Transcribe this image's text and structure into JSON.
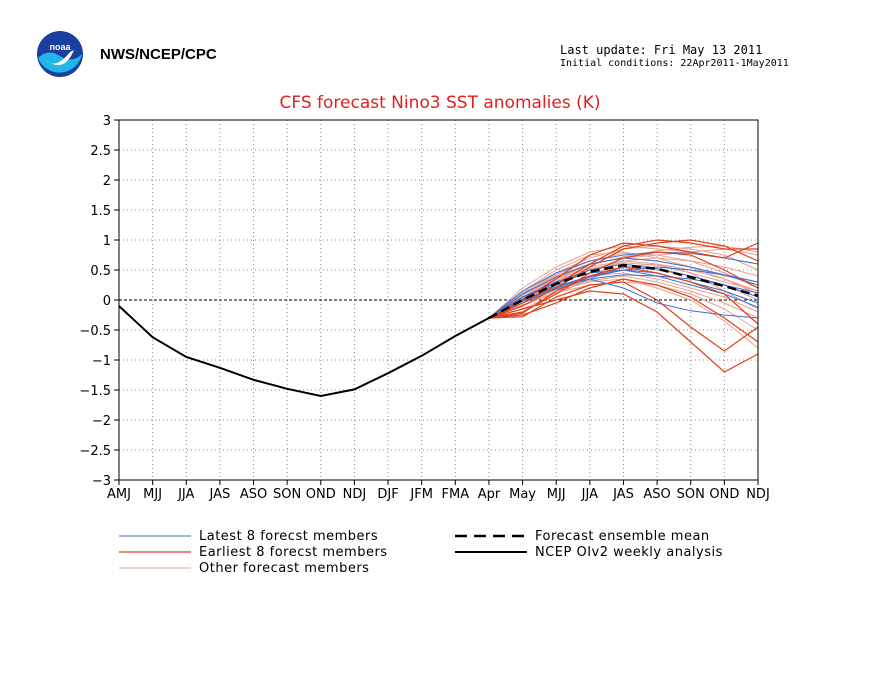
{
  "header": {
    "org": "NWS/NCEP/CPC",
    "last_update": "Last update: Fri May 13 2011",
    "initial_conditions": "Initial conditions: 22Apr2011-1May2011"
  },
  "colors": {
    "latest": "#3a6fd0",
    "earliest": "#e0401a",
    "other": "#e8a090",
    "mean": "#000000",
    "analysis": "#000000",
    "title": "#e02020"
  },
  "chart_data": {
    "type": "line",
    "title": "CFS forecast Nino3 SST anomalies (K)",
    "categories": [
      "AMJ",
      "MJJ",
      "JJA",
      "JAS",
      "ASO",
      "SON",
      "OND",
      "NDJ",
      "DJF",
      "JFM",
      "FMA",
      "Apr",
      "May",
      "MJJ",
      "JJA",
      "JAS",
      "ASO",
      "SON",
      "OND",
      "NDJ"
    ],
    "ylim": [
      -3,
      3
    ],
    "yticks": [
      -3,
      -2.5,
      -2,
      -1.5,
      -1,
      -0.5,
      0,
      0.5,
      1,
      1.5,
      2,
      2.5,
      3
    ],
    "grid": true,
    "legend": [
      {
        "label": "Latest 8 forecst members",
        "key": "latest"
      },
      {
        "label": "Earliest 8 forecst members",
        "key": "earliest"
      },
      {
        "label": "Other forecast members",
        "key": "other"
      },
      {
        "label": "Forecast ensemble mean",
        "key": "mean"
      },
      {
        "label": "NCEP OIv2 weekly analysis",
        "key": "analysis"
      }
    ],
    "analysis": {
      "x": [
        0,
        1,
        2,
        3,
        4,
        5,
        6,
        7,
        8,
        9,
        10,
        11
      ],
      "values": [
        -0.1,
        -0.62,
        -0.95,
        -1.13,
        -1.33,
        -1.48,
        -1.6,
        -1.49,
        -1.22,
        -0.93,
        -0.6,
        -0.3
      ]
    },
    "ensemble_mean": {
      "x": [
        11,
        12,
        13,
        14,
        15,
        16,
        17,
        18,
        19
      ],
      "values": [
        -0.3,
        0.0,
        0.27,
        0.47,
        0.58,
        0.52,
        0.38,
        0.23,
        0.07
      ]
    },
    "members": {
      "x": [
        11,
        12,
        13,
        14,
        15,
        16,
        17,
        18,
        19
      ],
      "latest": [
        [
          -0.3,
          0.05,
          0.3,
          0.5,
          0.6,
          0.52,
          0.4,
          0.25,
          0.05
        ],
        [
          -0.3,
          0.0,
          0.22,
          0.4,
          0.5,
          0.45,
          0.3,
          0.15,
          -0.05
        ],
        [
          -0.3,
          0.1,
          0.38,
          0.6,
          0.7,
          0.65,
          0.55,
          0.42,
          0.25
        ],
        [
          -0.3,
          -0.05,
          0.18,
          0.35,
          0.42,
          0.4,
          0.35,
          0.25,
          0.12
        ],
        [
          -0.3,
          0.05,
          0.25,
          0.35,
          0.2,
          -0.05,
          -0.18,
          -0.25,
          -0.3
        ],
        [
          -0.3,
          0.15,
          0.45,
          0.65,
          0.75,
          0.8,
          0.78,
          0.7,
          0.6
        ],
        [
          -0.3,
          0.02,
          0.3,
          0.45,
          0.5,
          0.4,
          0.25,
          0.1,
          -0.12
        ],
        [
          -0.3,
          -0.02,
          0.2,
          0.38,
          0.5,
          0.55,
          0.5,
          0.42,
          0.3
        ]
      ],
      "earliest": [
        [
          -0.3,
          -0.2,
          0.1,
          0.45,
          0.7,
          0.8,
          0.75,
          0.5,
          0.2
        ],
        [
          -0.3,
          -0.28,
          0.05,
          0.25,
          0.3,
          0.0,
          -0.45,
          -0.85,
          -0.45
        ],
        [
          -0.3,
          -0.1,
          0.2,
          0.55,
          0.85,
          0.95,
          1.0,
          0.9,
          0.65
        ],
        [
          -0.3,
          -0.15,
          0.0,
          0.15,
          0.1,
          -0.2,
          -0.7,
          -1.2,
          -0.9
        ],
        [
          -0.3,
          -0.05,
          0.25,
          0.6,
          0.9,
          1.0,
          0.95,
          0.85,
          0.85
        ],
        [
          -0.3,
          -0.22,
          0.15,
          0.4,
          0.55,
          0.45,
          0.3,
          0.1,
          -0.4
        ],
        [
          -0.3,
          0.0,
          0.35,
          0.75,
          0.95,
          0.9,
          0.8,
          0.7,
          0.95
        ],
        [
          -0.3,
          -0.25,
          -0.05,
          0.2,
          0.35,
          0.25,
          0.05,
          -0.3,
          -0.7
        ]
      ],
      "other": [
        [
          -0.3,
          0.2,
          0.55,
          0.8,
          0.9,
          0.85,
          0.8,
          0.7,
          0.6
        ],
        [
          -0.3,
          0.1,
          0.45,
          0.7,
          0.85,
          0.9,
          0.85,
          0.75,
          0.5
        ],
        [
          -0.3,
          -0.1,
          0.15,
          0.3,
          0.35,
          0.2,
          0.0,
          -0.35,
          -0.8
        ],
        [
          -0.3,
          0.0,
          0.3,
          0.55,
          0.65,
          0.6,
          0.5,
          0.35,
          0.1
        ],
        [
          -0.3,
          0.05,
          0.35,
          0.6,
          0.7,
          0.65,
          0.55,
          0.35,
          0.15
        ],
        [
          -0.3,
          -0.05,
          0.2,
          0.4,
          0.45,
          0.35,
          0.2,
          0.05,
          -0.2
        ],
        [
          -0.3,
          0.15,
          0.5,
          0.75,
          0.8,
          0.7,
          0.55,
          0.4,
          0.3
        ],
        [
          -0.3,
          0.0,
          0.25,
          0.5,
          0.65,
          0.7,
          0.65,
          0.55,
          0.4
        ],
        [
          -0.3,
          -0.15,
          0.1,
          0.35,
          0.55,
          0.6,
          0.45,
          0.15,
          -0.15
        ],
        [
          -0.3,
          0.1,
          0.4,
          0.6,
          0.7,
          0.75,
          0.8,
          0.85,
          0.75
        ],
        [
          -0.3,
          0.05,
          0.28,
          0.45,
          0.55,
          0.5,
          0.4,
          0.25,
          0.0
        ],
        [
          -0.3,
          -0.08,
          0.12,
          0.25,
          0.3,
          0.25,
          0.1,
          -0.15,
          -0.5
        ],
        [
          -0.3,
          0.12,
          0.42,
          0.65,
          0.78,
          0.75,
          0.65,
          0.45,
          0.2
        ],
        [
          -0.3,
          0.02,
          0.32,
          0.58,
          0.72,
          0.82,
          0.88,
          0.9,
          0.8
        ],
        [
          -0.3,
          -0.02,
          0.18,
          0.32,
          0.4,
          0.3,
          0.15,
          -0.05,
          -0.3
        ],
        [
          -0.3,
          0.08,
          0.36,
          0.52,
          0.62,
          0.58,
          0.45,
          0.3,
          0.15
        ]
      ]
    }
  }
}
